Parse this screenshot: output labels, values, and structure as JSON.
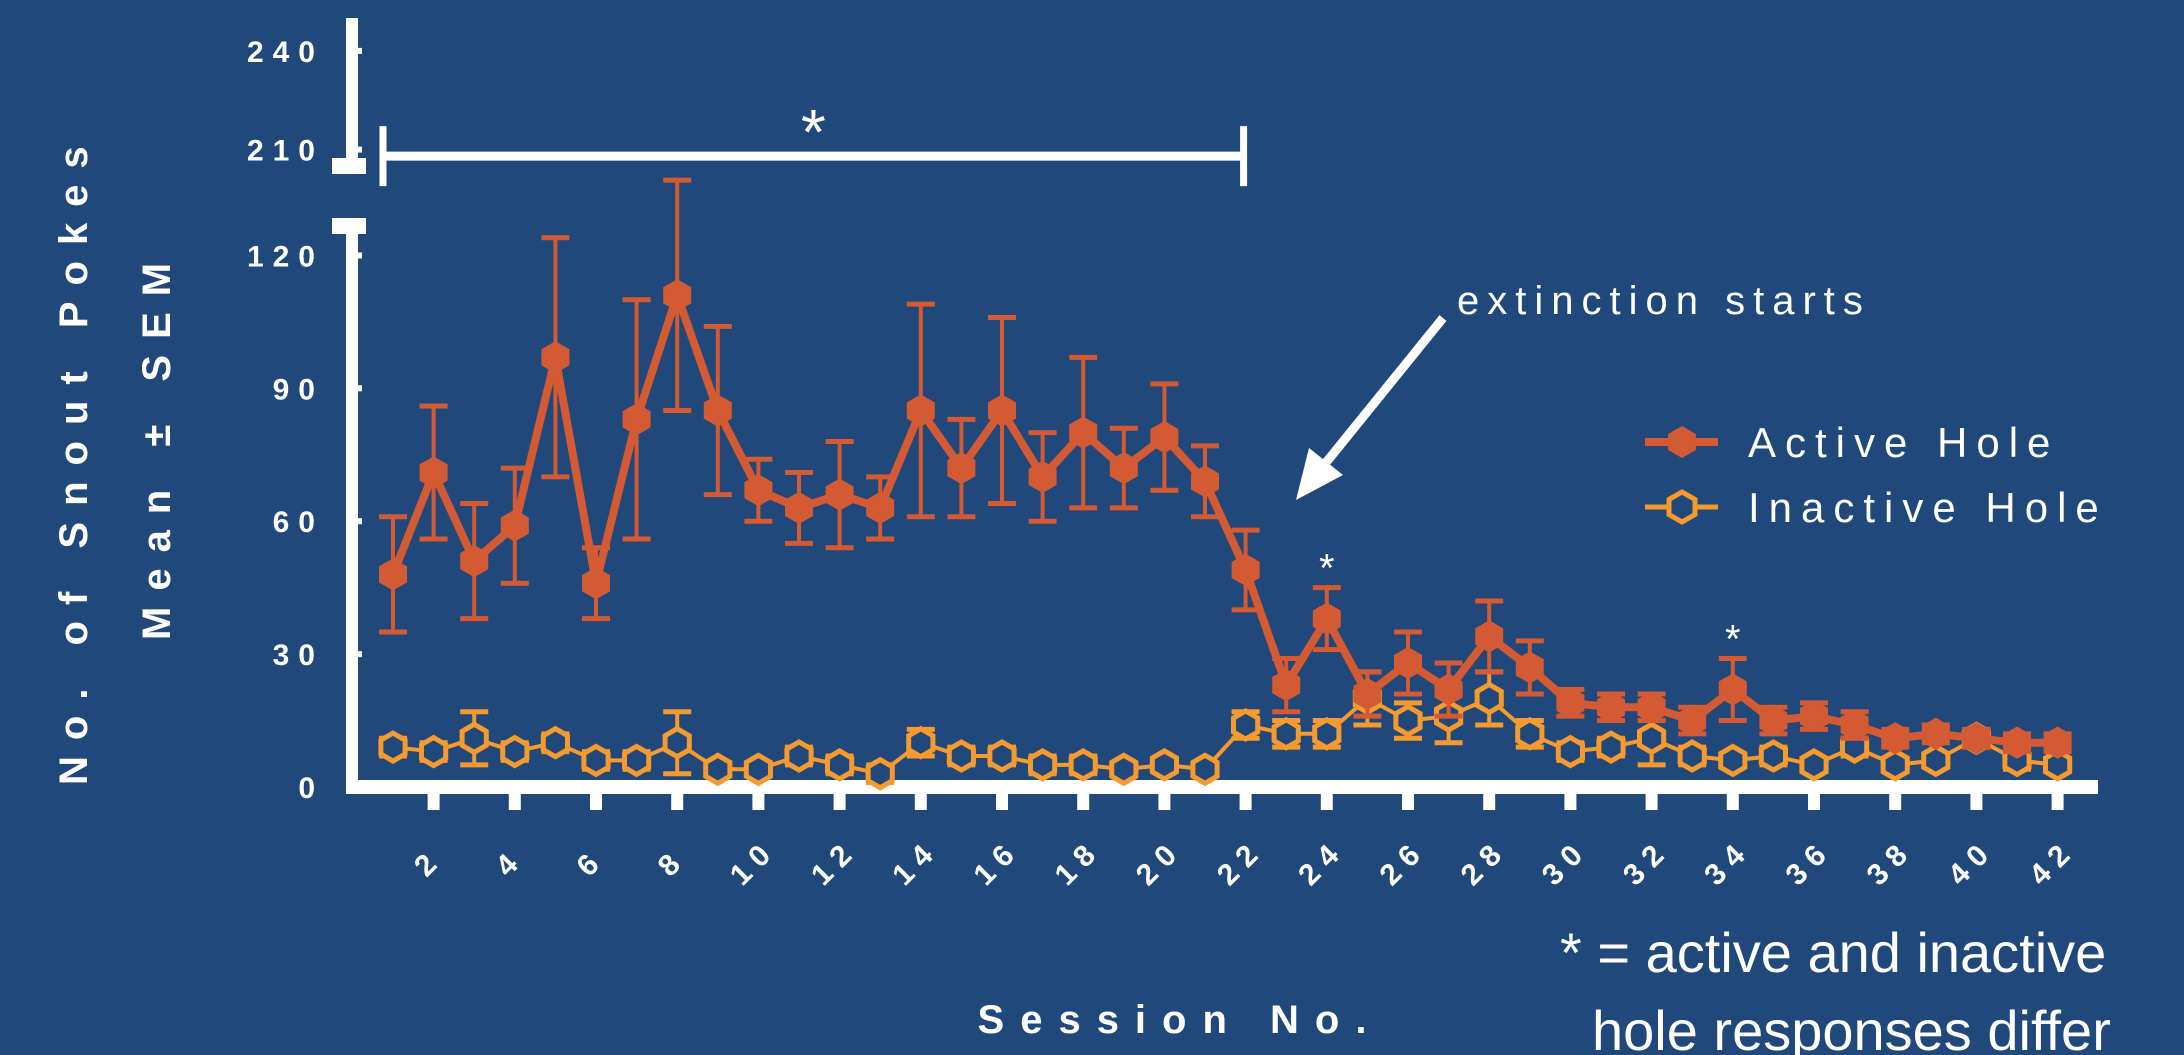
{
  "chart_data": {
    "type": "line",
    "ylabel_line1": "No. of Snout Pokes",
    "ylabel_line2": "Mean ± SEM",
    "xlabel": "Session No.",
    "x": [
      1,
      2,
      3,
      4,
      5,
      6,
      7,
      8,
      9,
      10,
      11,
      12,
      13,
      14,
      15,
      16,
      17,
      18,
      19,
      20,
      21,
      22,
      23,
      24,
      25,
      26,
      27,
      28,
      29,
      30,
      31,
      32,
      33,
      34,
      35,
      36,
      37,
      38,
      39,
      40,
      41,
      42
    ],
    "x_tick_labels": [
      "2",
      "4",
      "6",
      "8",
      "10",
      "12",
      "14",
      "16",
      "18",
      "20",
      "22",
      "24",
      "26",
      "28",
      "30",
      "32",
      "34",
      "36",
      "38",
      "40",
      "42"
    ],
    "y_ticks_lower": [
      "0",
      "30",
      "60",
      "90",
      "120"
    ],
    "y_ticks_upper": [
      "210",
      "240"
    ],
    "ylim_lower": [
      0,
      128
    ],
    "ylim_upper": [
      205,
      250
    ],
    "axis_break": true,
    "series": [
      {
        "name": "Active Hole",
        "color": "#d35a32",
        "marker": "filled-hexagon",
        "values": [
          48,
          71,
          51,
          59,
          97,
          46,
          83,
          111,
          85,
          67,
          63,
          66,
          63,
          85,
          72,
          85,
          70,
          80,
          72,
          79,
          69,
          49,
          23,
          38,
          21,
          28,
          22,
          34,
          27,
          19,
          18,
          18,
          15,
          22,
          15,
          16,
          14,
          11,
          12,
          11,
          10,
          10
        ],
        "sem": [
          13,
          15,
          13,
          13,
          27,
          8,
          27,
          26,
          19,
          7,
          8,
          12,
          7,
          24,
          11,
          21,
          10,
          17,
          9,
          12,
          8,
          9,
          6,
          7,
          5,
          7,
          6,
          8,
          6,
          3,
          3,
          3,
          3,
          7,
          3,
          3,
          3,
          2,
          2,
          2,
          2,
          2
        ]
      },
      {
        "name": "Inactive Hole",
        "color": "#f59a2e",
        "marker": "open-hexagon",
        "values": [
          9,
          8,
          11,
          8,
          10,
          6,
          6,
          10,
          4,
          4,
          7,
          5,
          3,
          10,
          7,
          7,
          5,
          5,
          4,
          5,
          4,
          14,
          12,
          12,
          20,
          15,
          16,
          20,
          12,
          8,
          9,
          11,
          7,
          6,
          7,
          5,
          9,
          5,
          6,
          11,
          6,
          5
        ],
        "sem": [
          2,
          2,
          6,
          2,
          2,
          2,
          2,
          7,
          1,
          1,
          2,
          2,
          2,
          3,
          2,
          2,
          2,
          2,
          1,
          1,
          1,
          3,
          3,
          3,
          6,
          4,
          6,
          6,
          3,
          2,
          2,
          6,
          2,
          1,
          2,
          1,
          2,
          1,
          1,
          2,
          2,
          1
        ]
      }
    ],
    "legend_position": "right",
    "significance_bracket": {
      "label": "*",
      "from_session": 1,
      "to_session": 22
    },
    "significant_sessions": [
      24,
      34
    ],
    "significance_mark": "*",
    "annotation": {
      "text": "extinction starts",
      "points_to_session": 22
    },
    "footnote_line1": "* = active and inactive",
    "footnote_line2": "hole responses differ"
  }
}
